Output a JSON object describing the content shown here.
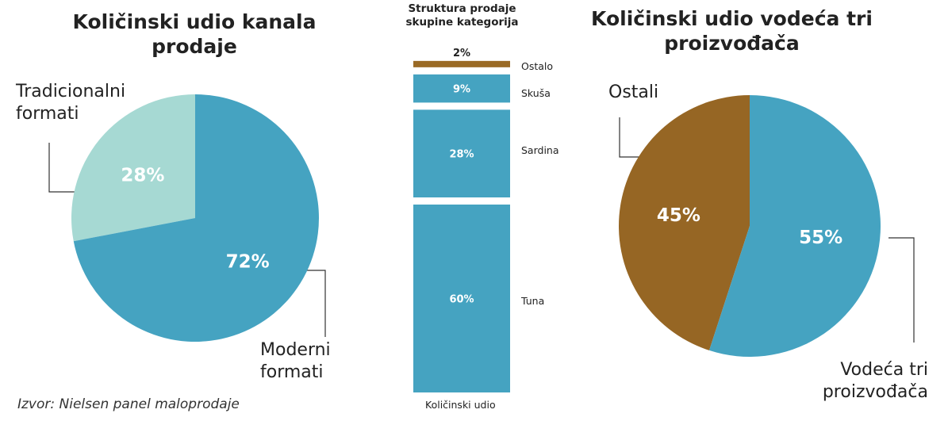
{
  "source": "Izvor: Nielsen panel maloprodaje",
  "chart_data": [
    {
      "type": "pie",
      "title": "Količinski udio kanala\nprodaje",
      "slices": [
        {
          "label": "Tradicionalni\nformati",
          "value": 28,
          "value_label": "28%",
          "color": "#a6d9d3"
        },
        {
          "label": "Moderni\nformati",
          "value": 72,
          "value_label": "72%",
          "color": "#45a3c1"
        }
      ]
    },
    {
      "type": "bar",
      "stacked": true,
      "title": "Struktura prodaje\nskupine kategorija",
      "xlabel": "Količinski udio",
      "categories": [
        "Ostalo",
        "Skuša",
        "Sardina",
        "Tuna"
      ],
      "values": [
        2,
        9,
        28,
        60
      ],
      "value_labels": [
        "2%",
        "9%",
        "28%",
        "60%"
      ],
      "colors": [
        "#9a6a25",
        "#45a3c1",
        "#45a3c1",
        "#45a3c1"
      ]
    },
    {
      "type": "pie",
      "title": "Količinski udio vodeća tri\nproizvođača",
      "slices": [
        {
          "label": "Ostali",
          "value": 45,
          "value_label": "45%",
          "color": "#966624"
        },
        {
          "label": "Vodeća tri\nproizvođača",
          "value": 55,
          "value_label": "55%",
          "color": "#45a3c1"
        }
      ]
    }
  ]
}
